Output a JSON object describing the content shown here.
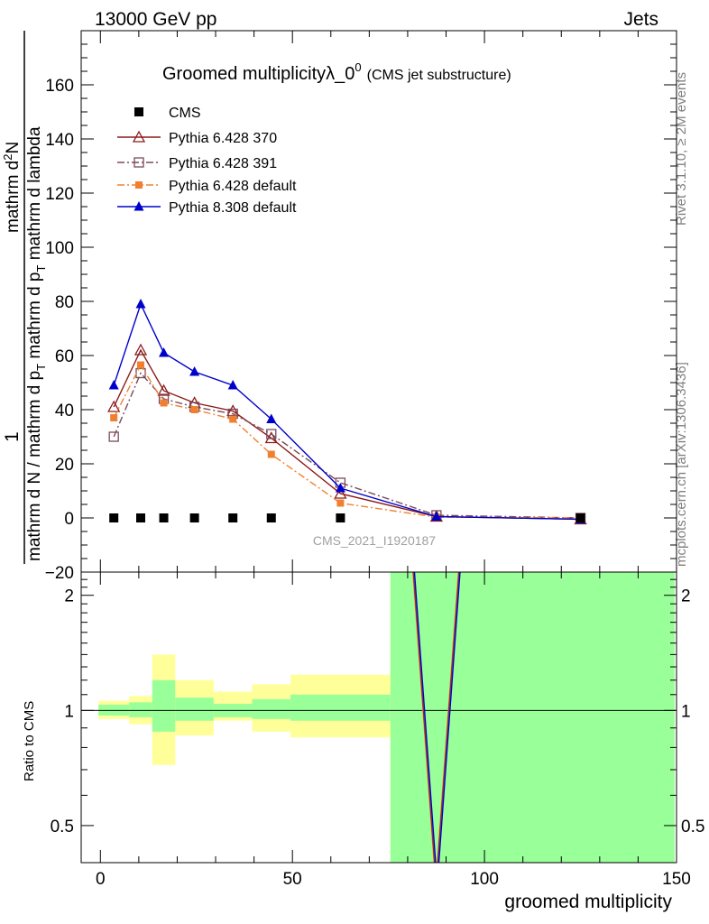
{
  "header": {
    "left": "13000 GeV pp",
    "right": "Jets",
    "side_top": "Rivet 3.1.10, ≥ 2M events",
    "side_bottom": "mcplots.cern.ch [arXiv:1306.3436]"
  },
  "chart_data": {
    "type": "line",
    "title_main": "Groomed multiplicityλ_0",
    "title_sup": "0",
    "title_sub": "(CMS jet substructure)",
    "watermark": "CMS_2021_I1920187",
    "xlabel": "groomed multiplicity",
    "xlim": [
      -5,
      150
    ],
    "x_ticks": [
      "0",
      "50",
      "100",
      "150"
    ],
    "x_tick_values": [
      0,
      50,
      100,
      150
    ],
    "main": {
      "ylim": [
        -20,
        180
      ],
      "y_ticks": [
        "−20",
        "0",
        "20",
        "40",
        "60",
        "80",
        "100",
        "120",
        "140",
        "160"
      ],
      "y_tick_values": [
        -20,
        0,
        20,
        40,
        60,
        80,
        100,
        120,
        140,
        160
      ],
      "ylabel": {
        "numerator": "1",
        "den_line1": "mathrm d N / mathrm d p",
        "den_sub1": "T",
        "den_line2": " mathrm d p",
        "den_sub2": "T",
        "den_line3": " mathrm d lambda",
        "numerator_right": "mathrm d",
        "numerator_right_sup": "2",
        "numerator_right_end": "N"
      }
    },
    "ratio": {
      "ylabel": "Ratio to CMS",
      "ylim": [
        0.4,
        2.3
      ],
      "y_ticks": [
        "0.5",
        "1",
        "2"
      ],
      "y_tick_values": [
        0.5,
        1,
        2
      ],
      "bands": [
        {
          "x0": -0.5,
          "x1": 7.5,
          "inner": [
            0.97,
            1.035
          ],
          "outer": [
            0.95,
            1.06
          ]
        },
        {
          "x0": 7.5,
          "x1": 13.5,
          "inner": [
            0.96,
            1.05
          ],
          "outer": [
            0.92,
            1.09
          ]
        },
        {
          "x0": 13.5,
          "x1": 19.5,
          "inner": [
            0.88,
            1.2
          ],
          "outer": [
            0.72,
            1.4
          ]
        },
        {
          "x0": 19.5,
          "x1": 29.5,
          "inner": [
            0.94,
            1.08
          ],
          "outer": [
            0.86,
            1.2
          ]
        },
        {
          "x0": 29.5,
          "x1": 39.5,
          "inner": [
            0.96,
            1.04
          ],
          "outer": [
            0.94,
            1.12
          ]
        },
        {
          "x0": 39.5,
          "x1": 49.5,
          "inner": [
            0.95,
            1.07
          ],
          "outer": [
            0.88,
            1.17
          ]
        },
        {
          "x0": 49.5,
          "x1": 75.5,
          "inner": [
            0.94,
            1.1
          ],
          "outer": [
            0.85,
            1.24
          ]
        },
        {
          "x0": 75.5,
          "x1": 149.5,
          "inner": [
            0.4,
            2.3
          ],
          "outer": [
            0.4,
            2.3
          ]
        }
      ],
      "spike_x": [
        81.5,
        87.5,
        93.5
      ],
      "spike_y": [
        2.35,
        0.35,
        2.35
      ]
    },
    "series": [
      {
        "name": "CMS",
        "marker": "filled-square",
        "color": "#000000",
        "dash": "",
        "x": [
          3.5,
          10.5,
          16.5,
          24.5,
          34.5,
          44.5,
          62.5,
          125
        ],
        "y": [
          0,
          0,
          0,
          0,
          0,
          0,
          0,
          0
        ]
      },
      {
        "name": "Pythia 6.428 370",
        "marker": "open-triangle",
        "color": "#8b1a1a",
        "dash": "",
        "x": [
          3.5,
          10.5,
          16.5,
          24.5,
          34.5,
          44.5,
          62.5,
          87.5,
          125
        ],
        "y": [
          41,
          62,
          47,
          42.5,
          39.5,
          29.5,
          9,
          0.5,
          -0.5
        ]
      },
      {
        "name": "Pythia 6.428 391",
        "marker": "open-square",
        "color": "#7a4a5a",
        "dash": "8,3,2,3",
        "x": [
          3.5,
          10.5,
          16.5,
          24.5,
          34.5,
          44.5,
          62.5,
          87.5,
          125
        ],
        "y": [
          30,
          53.5,
          44,
          41,
          38.5,
          31,
          13,
          1,
          0
        ]
      },
      {
        "name": "Pythia 6.428 default",
        "marker": "filled-square-small",
        "color": "#f08030",
        "dash": "8,3,2,3",
        "x": [
          3.5,
          10.5,
          16.5,
          24.5,
          34.5,
          44.5,
          62.5,
          87.5,
          125
        ],
        "y": [
          37,
          56.5,
          42.5,
          40,
          36.5,
          23.5,
          5.5,
          0.3,
          0
        ]
      },
      {
        "name": "Pythia 8.308 default",
        "marker": "filled-triangle",
        "color": "#0000cc",
        "dash": "",
        "x": [
          3.5,
          10.5,
          16.5,
          24.5,
          34.5,
          44.5,
          62.5,
          87.5,
          125
        ],
        "y": [
          49,
          79,
          61,
          54,
          49,
          36.5,
          11,
          0.5,
          -0.5
        ]
      }
    ]
  }
}
